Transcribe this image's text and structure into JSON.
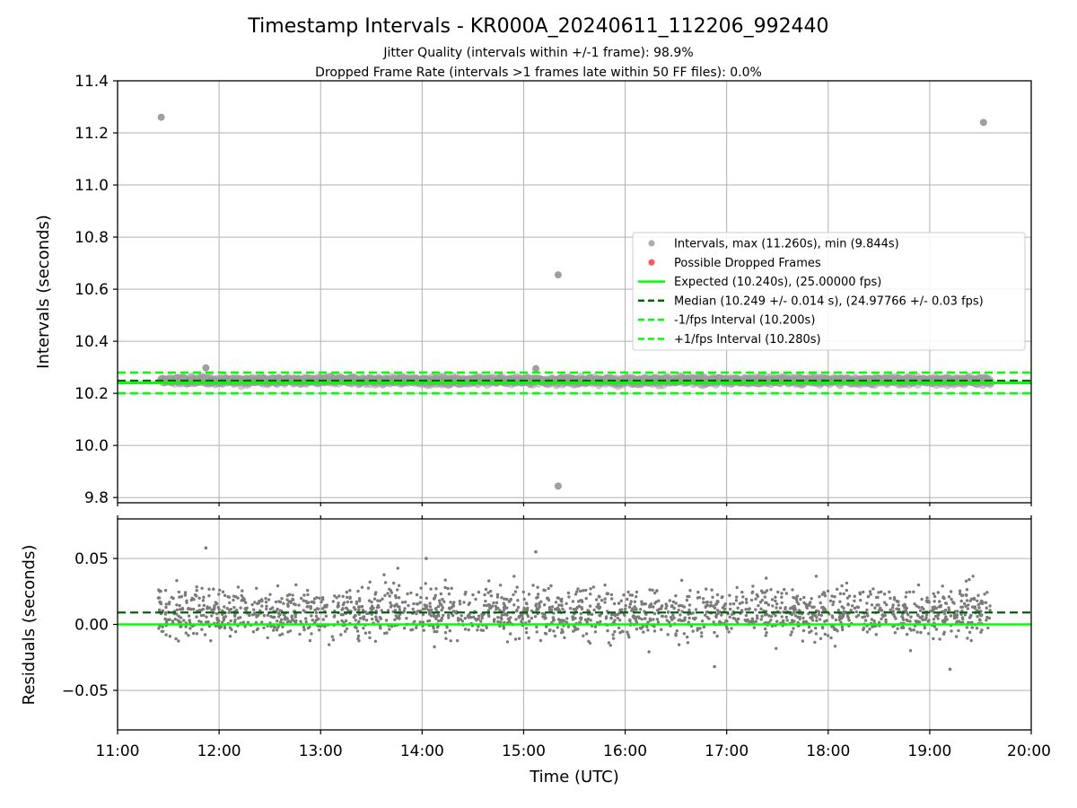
{
  "figure": {
    "title": "Timestamp Intervals - KR000A_20240611_112206_992440",
    "subtitle_1": "Jitter Quality (intervals within +/-1 frame): 98.9%",
    "subtitle_2": "Dropped Frame Rate (intervals >1 frames late within 50 FF files): 0.0%"
  },
  "chart_data": [
    {
      "type": "scatter",
      "panel": "intervals",
      "xlabel": "",
      "ylabel": "Intervals (seconds)",
      "xlim_hours": [
        11.0,
        20.0
      ],
      "ylim": [
        9.78,
        11.4
      ],
      "yticks": [
        "9.8",
        "10.0",
        "10.2",
        "10.4",
        "10.6",
        "10.8",
        "11.0",
        "11.2",
        "11.4"
      ],
      "ytick_values": [
        9.8,
        10.0,
        10.2,
        10.4,
        10.6,
        10.8,
        11.0,
        11.2,
        11.4
      ],
      "grid": true,
      "legend_position": "right",
      "legend": [
        {
          "label": "Intervals, max (11.260s), min (9.844s)",
          "kind": "marker",
          "color": "#a0a0a0"
        },
        {
          "label": "Possible Dropped Frames",
          "kind": "marker",
          "color": "#ff5a5a"
        },
        {
          "label": "Expected (10.240s), (25.00000 fps)",
          "kind": "solid",
          "color": "#00ff00"
        },
        {
          "label": "Median (10.249 +/- 0.014 s), (24.97766 +/- 0.03 fps)",
          "kind": "dashed",
          "color": "#006400"
        },
        {
          "label": "-1/fps Interval (10.200s)",
          "kind": "dashed",
          "color": "#00ff00"
        },
        {
          "label": "+1/fps Interval (10.280s)",
          "kind": "dashed",
          "color": "#00ff00"
        }
      ],
      "reference_lines": {
        "expected": 10.24,
        "median": 10.249,
        "minus_one_frame": 10.2,
        "plus_one_frame": 10.28
      },
      "series": [
        {
          "name": "Intervals",
          "time_range_hours": [
            11.43,
            19.6
          ],
          "typical_min": 10.22,
          "typical_max": 10.28
        },
        {
          "name": "Possible Dropped Frames",
          "values": []
        }
      ],
      "outliers": [
        {
          "t": 11.43,
          "y": 11.26
        },
        {
          "t": 15.34,
          "y": 10.655
        },
        {
          "t": 15.34,
          "y": 9.844
        },
        {
          "t": 19.53,
          "y": 11.24
        },
        {
          "t": 11.87,
          "y": 10.298
        },
        {
          "t": 15.12,
          "y": 10.295
        }
      ],
      "colors": {
        "points": "#a0a0a0",
        "points_edge": "#8c8c8c",
        "expected": "#00ff00",
        "median": "#006400"
      }
    },
    {
      "type": "scatter",
      "panel": "residuals",
      "xlabel": "Time (UTC)",
      "ylabel": "Residuals (seconds)",
      "xlim_hours": [
        11.0,
        20.0
      ],
      "xticks": [
        "11:00",
        "12:00",
        "13:00",
        "14:00",
        "15:00",
        "16:00",
        "17:00",
        "18:00",
        "19:00",
        "20:00"
      ],
      "xtick_values": [
        11,
        12,
        13,
        14,
        15,
        16,
        17,
        18,
        19,
        20
      ],
      "ylim": [
        -0.08,
        0.08
      ],
      "yticks": [
        "−0.05",
        "0.00",
        "0.05"
      ],
      "ytick_values": [
        -0.05,
        0.0,
        0.05
      ],
      "grid": true,
      "reference_lines": {
        "zero": 0.0,
        "median_residual": 0.009
      },
      "series": [
        {
          "name": "Residuals",
          "time_range_hours": [
            11.4,
            19.6
          ],
          "typical_min": -0.03,
          "typical_max": 0.045
        }
      ],
      "outliers": [
        {
          "t": 11.87,
          "y": 0.058
        },
        {
          "t": 15.12,
          "y": 0.055
        },
        {
          "t": 14.04,
          "y": 0.05
        },
        {
          "t": 16.88,
          "y": -0.032
        },
        {
          "t": 19.2,
          "y": -0.034
        }
      ],
      "colors": {
        "points": "#7a7a7a",
        "zero": "#00ff00",
        "median": "#006400"
      }
    }
  ]
}
